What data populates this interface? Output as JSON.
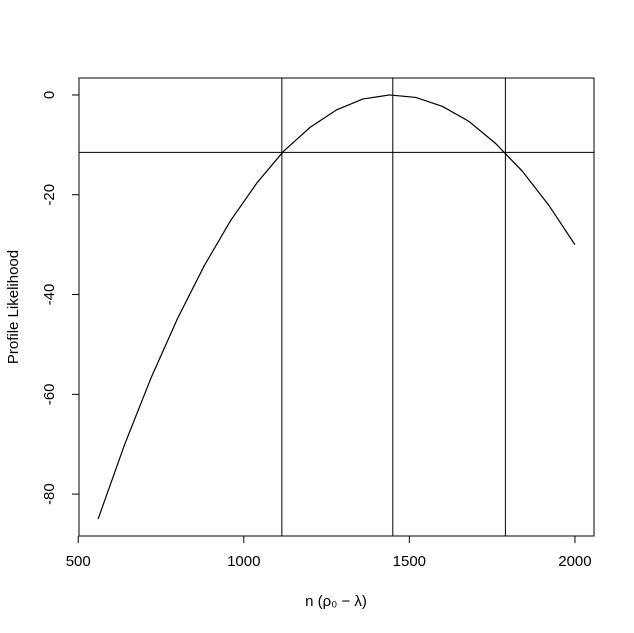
{
  "chart_data": {
    "type": "line",
    "x_label": "n (ρ₀ − λ)",
    "y_label": "Profile Likelihood",
    "x": [
      560,
      640,
      720,
      800,
      880,
      960,
      1040,
      1120,
      1200,
      1280,
      1360,
      1440,
      1520,
      1600,
      1680,
      1760,
      1840,
      1920,
      2000
    ],
    "series": [
      {
        "color": "#000000",
        "values": [
          -85.0,
          -70.1,
          -56.7,
          -44.8,
          -34.3,
          -25.2,
          -17.6,
          -11.3,
          -6.5,
          -3.0,
          -0.8,
          0.0,
          -0.5,
          -2.3,
          -5.3,
          -9.7,
          -15.2,
          -22.0,
          -30.0
        ]
      }
    ],
    "vlines": [
      1115,
      1450,
      1790
    ],
    "hline": -11.5,
    "xlim": [
      502.4,
      2057.6
    ],
    "ylim": [
      -88.4,
      3.4
    ],
    "xticks": [
      500,
      1000,
      1500,
      2000
    ],
    "yticks": [
      0,
      -20,
      -40,
      -60,
      -80
    ]
  }
}
